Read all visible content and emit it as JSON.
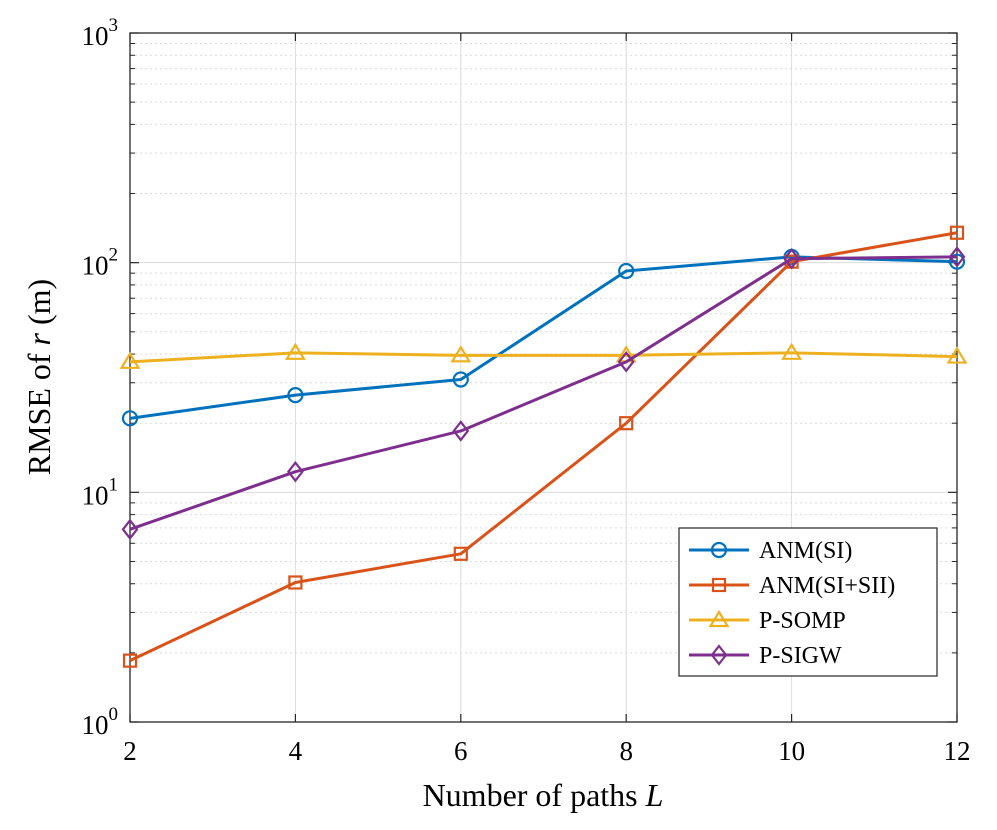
{
  "chart_data": {
    "type": "line",
    "xlabel": "Number of paths",
    "xlabel_var": "L",
    "ylabel": "RMSE of",
    "ylabel_var": "r",
    "ylabel_unit": "(m)",
    "yscale": "log",
    "xlim": [
      2,
      12
    ],
    "ylim": [
      1,
      1000
    ],
    "grid": true,
    "legend_position": "bottom-right",
    "x": [
      2,
      4,
      6,
      8,
      10,
      12
    ],
    "x_ticks": [
      "2",
      "4",
      "6",
      "8",
      "10",
      "12"
    ],
    "y_ticks": [
      {
        "base": "10",
        "exp": "0",
        "value": 1
      },
      {
        "base": "10",
        "exp": "1",
        "value": 10
      },
      {
        "base": "10",
        "exp": "2",
        "value": 100
      },
      {
        "base": "10",
        "exp": "3",
        "value": 1000
      }
    ],
    "series": [
      {
        "name": "ANM(SI)",
        "color": "#0072BD",
        "marker": "circle",
        "values": [
          21,
          26.5,
          31,
          92,
          106,
          101
        ]
      },
      {
        "name": "ANM(SI+SII)",
        "color": "#D95319",
        "marker": "square",
        "values": [
          1.85,
          4.05,
          5.4,
          20,
          101,
          135
        ]
      },
      {
        "name": "P-SOMP",
        "color": "#EDB120",
        "marker": "triangle",
        "values": [
          37,
          40.5,
          39.5,
          39.5,
          40.5,
          39
        ]
      },
      {
        "name": "P-SIGW",
        "color": "#7E2F8E",
        "marker": "diamond",
        "values": [
          6.9,
          12.3,
          18.5,
          37,
          104,
          106
        ]
      }
    ]
  }
}
